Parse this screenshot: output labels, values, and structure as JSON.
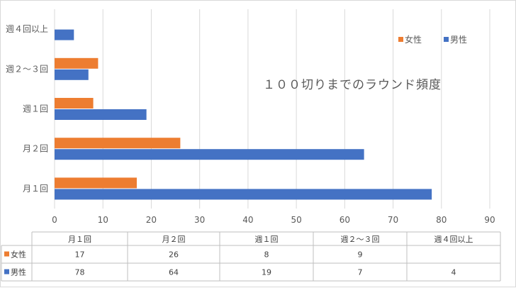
{
  "chart_data": {
    "type": "bar",
    "orientation": "horizontal",
    "title": "１００切りまでのラウンド頻度",
    "categories": [
      "月１回",
      "月２回",
      "週１回",
      "週２～３回",
      "週４回以上"
    ],
    "series": [
      {
        "name": "女性",
        "color": "#ed7d31",
        "values": [
          17,
          26,
          8,
          9,
          null
        ]
      },
      {
        "name": "男性",
        "color": "#4472c4",
        "values": [
          78,
          64,
          19,
          7,
          4
        ]
      }
    ],
    "xlim": [
      0,
      90
    ],
    "xticks": [
      0,
      10,
      20,
      30,
      40,
      50,
      60,
      70,
      80,
      90
    ],
    "grid": "vertical",
    "legend_position": "top-right",
    "data_table": true
  },
  "table": {
    "rows": [
      [
        "17",
        "26",
        "8",
        "9",
        ""
      ],
      [
        "78",
        "64",
        "19",
        "7",
        "4"
      ]
    ]
  }
}
